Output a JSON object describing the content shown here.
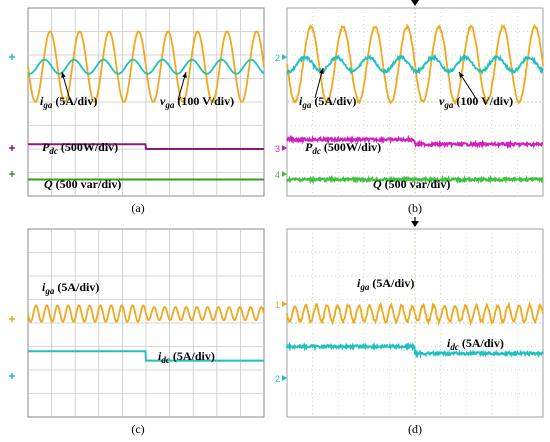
{
  "colors": {
    "orange": "#f0a81e",
    "cyan": "#20c0c0",
    "purple": "#8b1a7a",
    "magenta": "#d020c0",
    "green": "#3a9a20",
    "brightgreen": "#40c040",
    "grid_sim": "#c8c8c8",
    "grid_scope": "#c8d8b0"
  },
  "chart_data": [
    {
      "panel": "a",
      "caption": "(a)",
      "type": "line",
      "grid": true,
      "labels": [
        {
          "main": "i",
          "sub": "ga",
          "rest": "(5A/div)"
        },
        {
          "main": "v",
          "sub": "ga",
          "rest": "(100 V/div)"
        },
        {
          "main": "P",
          "sub": "dc",
          "rest": "(500W/div)"
        },
        {
          "main": "Q",
          "sub": "",
          "rest": "(500 var/div)"
        }
      ],
      "series": [
        {
          "color_key": "orange",
          "kind": "sine",
          "cycles": 8,
          "amplitude_div": 1.5,
          "offset_div": 2.5
        },
        {
          "color_key": "cyan",
          "kind": "sine",
          "cycles": 8,
          "amplitude_div": 0.3,
          "offset_div": 2.5,
          "phase": 1.2
        },
        {
          "color_key": "purple",
          "kind": "step",
          "before_div": 5.8,
          "after_div": 6.0,
          "step_frac": 0.5
        },
        {
          "color_key": "green",
          "kind": "flat",
          "level_div": 7.3
        }
      ]
    },
    {
      "panel": "b",
      "caption": "(b)",
      "type": "line",
      "grid": true,
      "channel_marks": [
        "2",
        "3",
        "4"
      ],
      "labels": [
        {
          "main": "i",
          "sub": "ga",
          "rest": "(5A/div)"
        },
        {
          "main": "v",
          "sub": "ga",
          "rest": "(100 V/div)"
        },
        {
          "main": "P",
          "sub": "dc",
          "rest": "(500W/div)"
        },
        {
          "main": "Q",
          "sub": "",
          "rest": "(500 var/div)"
        }
      ],
      "series": [
        {
          "color_key": "orange",
          "kind": "sine",
          "cycles": 8,
          "amplitude_div": 1.6,
          "offset_div": 2.4,
          "noisy": true
        },
        {
          "color_key": "cyan",
          "kind": "sine",
          "cycles": 8,
          "amplitude_div": 0.3,
          "offset_div": 2.4,
          "phase": 1.2,
          "noisy": true
        },
        {
          "color_key": "magenta",
          "kind": "step",
          "before_div": 5.6,
          "after_div": 5.8,
          "step_frac": 0.5,
          "noisy": true
        },
        {
          "color_key": "brightgreen",
          "kind": "flat",
          "level_div": 7.3,
          "noisy": true
        }
      ]
    },
    {
      "panel": "c",
      "caption": "(c)",
      "type": "line",
      "grid": true,
      "labels": [
        {
          "main": "i",
          "sub": "ga",
          "rest": "(5A/div)"
        },
        {
          "main": "i",
          "sub": "dc",
          "rest": "(5A/div)"
        }
      ],
      "series": [
        {
          "color_key": "orange",
          "kind": "sine",
          "cycles": 22,
          "amplitude_div": 0.35,
          "offset_div": 3.6,
          "decay": 0.2
        },
        {
          "color_key": "cyan",
          "kind": "step",
          "before_div": 5.2,
          "after_div": 5.6,
          "step_frac": 0.5
        }
      ]
    },
    {
      "panel": "d",
      "caption": "(d)",
      "type": "line",
      "grid": true,
      "channel_marks": [
        "1",
        "2"
      ],
      "labels": [
        {
          "main": "i",
          "sub": "ga",
          "rest": "(5A/div)"
        },
        {
          "main": "i",
          "sub": "dc",
          "rest": "(5A/div)"
        }
      ],
      "series": [
        {
          "color_key": "orange",
          "kind": "sine",
          "cycles": 24,
          "amplitude_div": 0.35,
          "offset_div": 3.6,
          "noisy": true
        },
        {
          "color_key": "cyan",
          "kind": "step",
          "before_div": 5.0,
          "after_div": 5.3,
          "step_frac": 0.5,
          "noisy": true
        }
      ]
    }
  ]
}
